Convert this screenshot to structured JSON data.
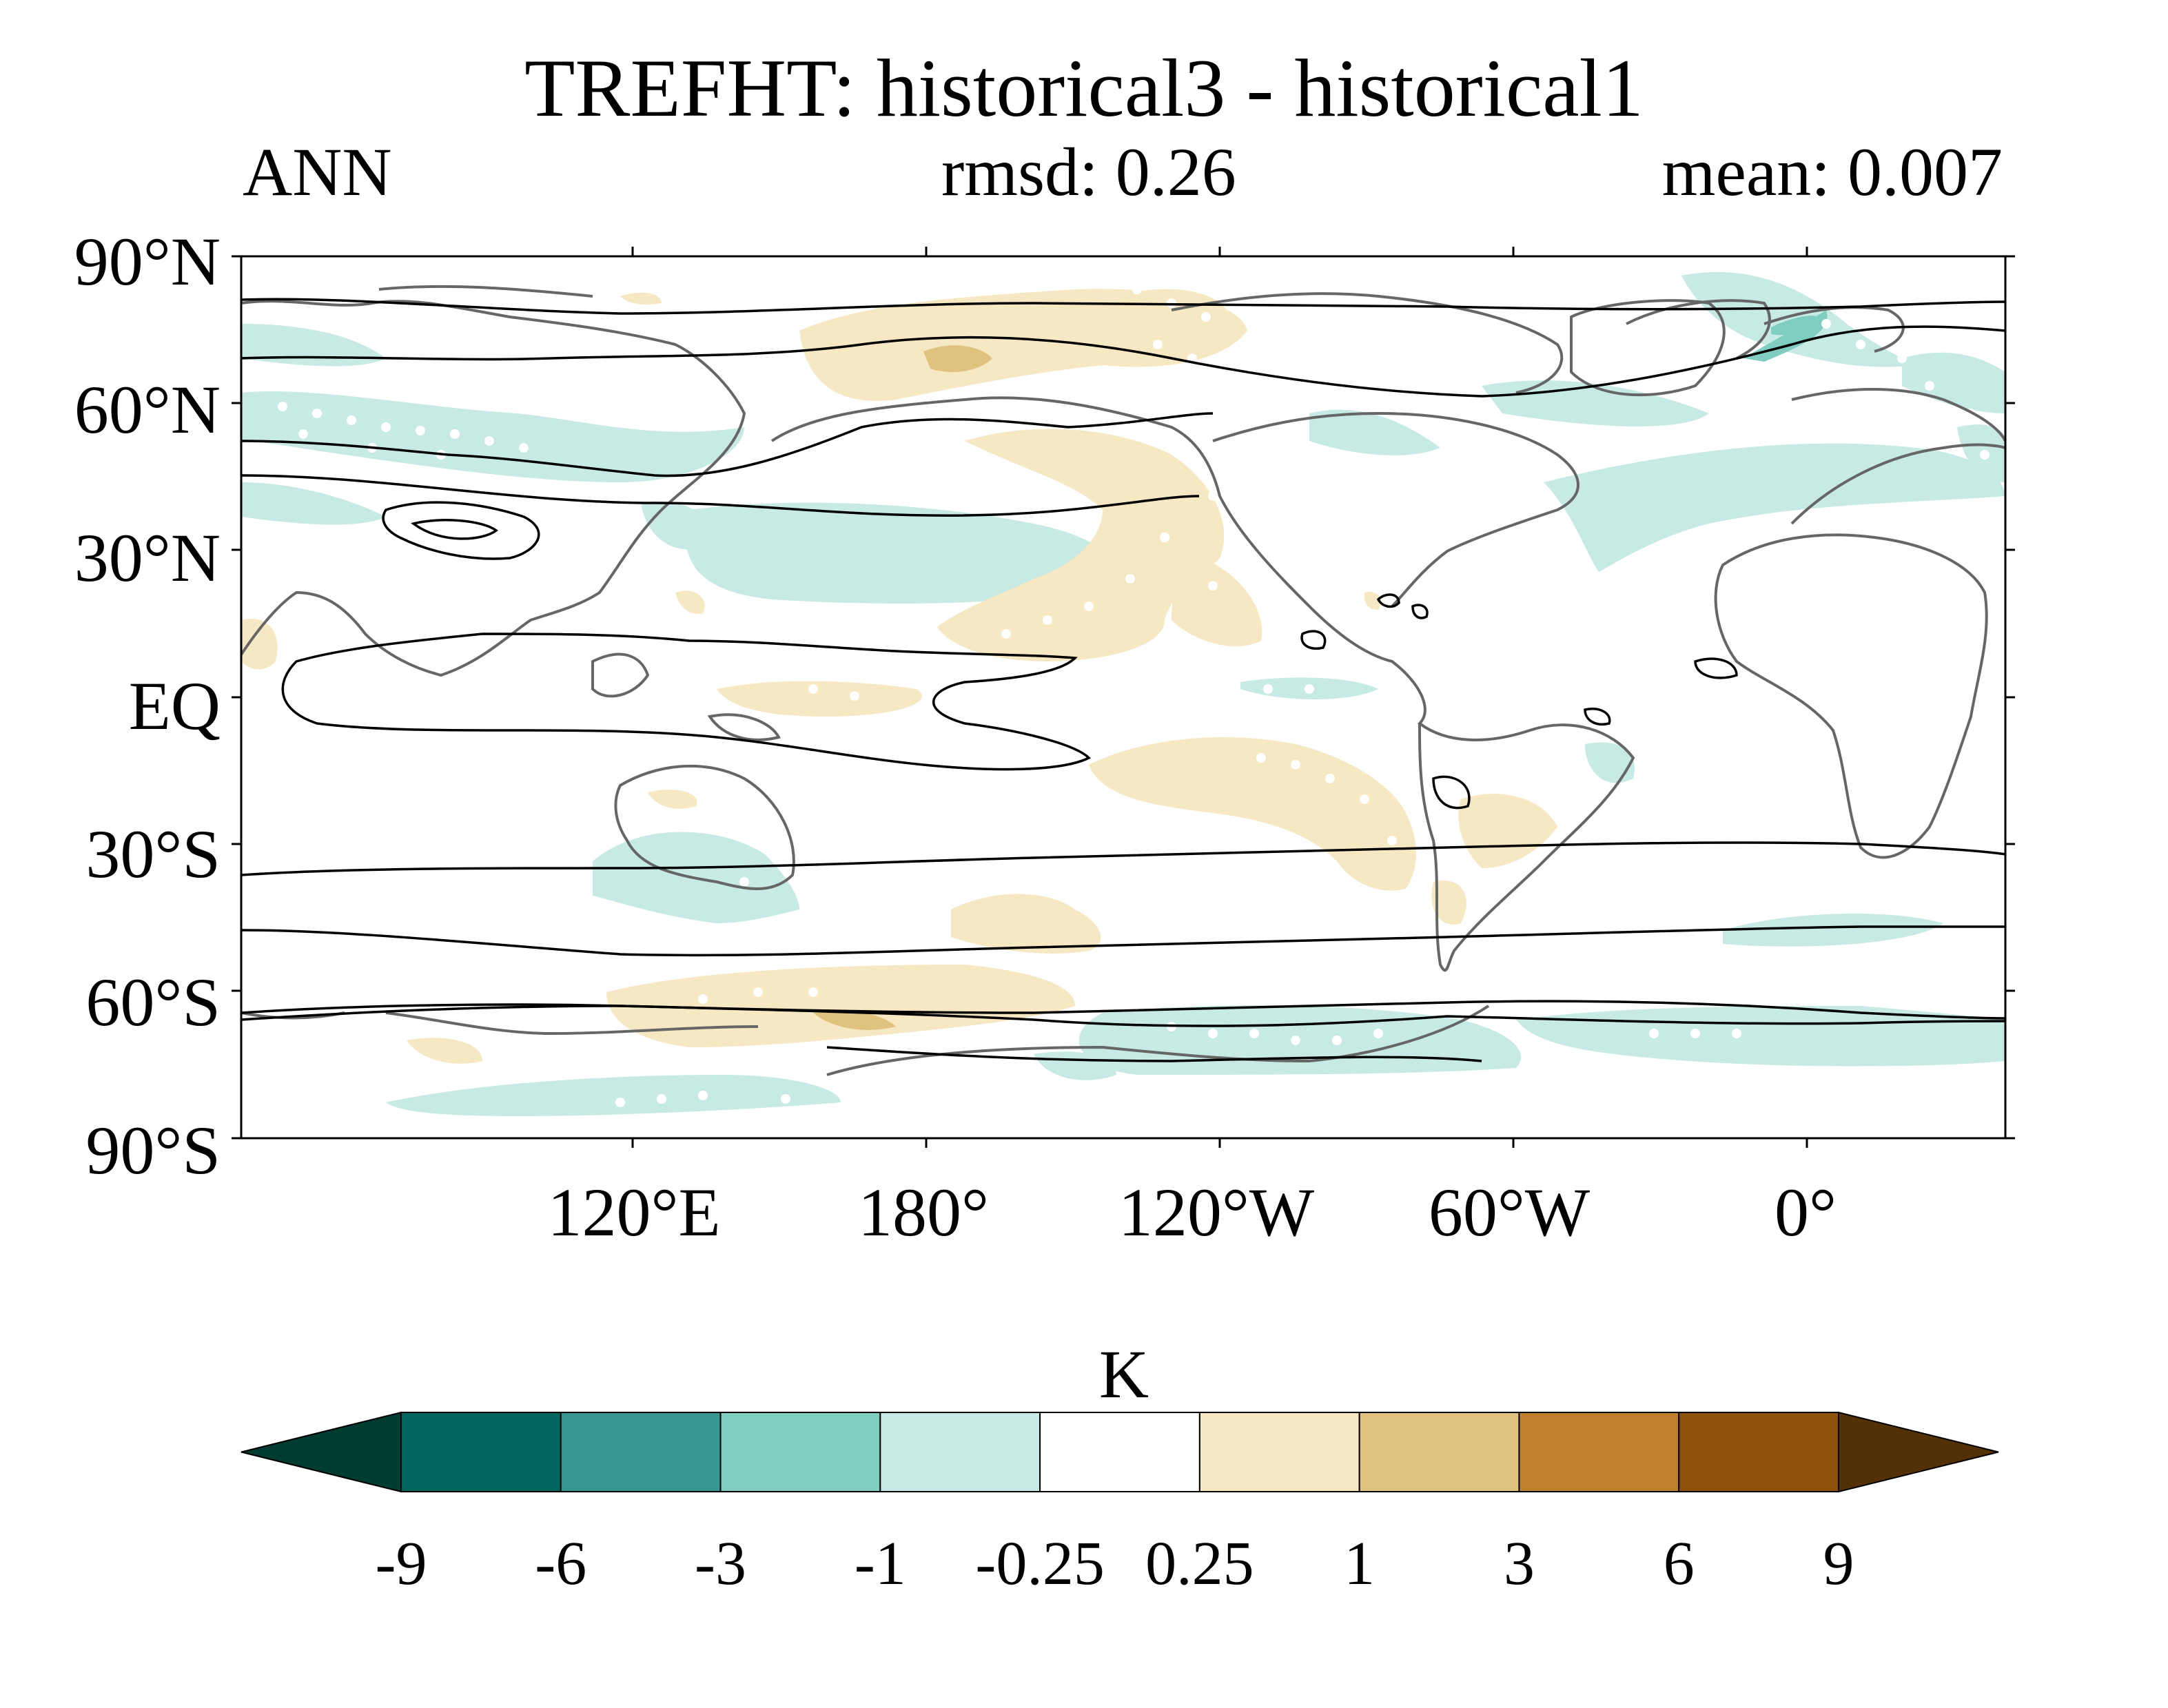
{
  "title": "TREFHT: historical3 - historical1",
  "season": "ANN",
  "rmsd": "rmsd: 0.26",
  "mean": "mean: 0.007",
  "map": {
    "projection": "PlateCarree",
    "central_longitude": -156,
    "y_tick_labels": [
      "90°N",
      "60°N",
      "30°N",
      "EQ",
      "30°S",
      "60°S",
      "90°S"
    ],
    "x_tick_labels": [
      "120°E",
      "180°",
      "120°W",
      "60°W",
      "0°"
    ],
    "field": "near-surface air temperature difference",
    "stippling": "white dots mark significant regions",
    "contours": "black lines show climatology; gray lines show coastlines"
  },
  "colorbar": {
    "unit": "K",
    "levels": [
      "-9",
      "-6",
      "-3",
      "-1",
      "-0.25",
      "0.25",
      "1",
      "3",
      "6",
      "9"
    ],
    "colors": [
      "#003c30",
      "#01665e",
      "#35978f",
      "#80cdc1",
      "#c7eae5",
      "#ffffff",
      "#f6e8c3",
      "#dfc27d",
      "#bf812d",
      "#8c510a",
      "#543005"
    ],
    "extend": "both"
  }
}
